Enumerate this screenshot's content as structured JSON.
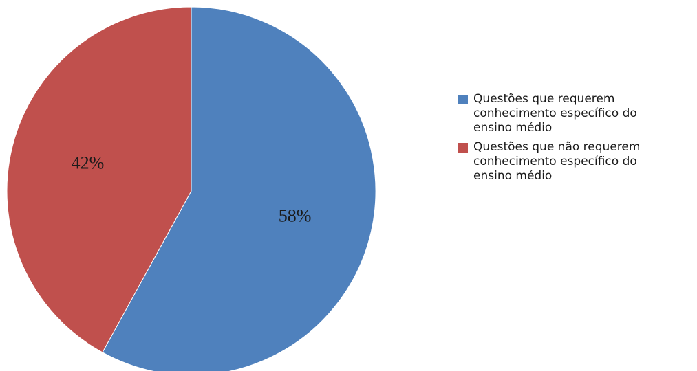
{
  "chart_data": {
    "type": "pie",
    "title": "",
    "start_angle_deg": 0,
    "direction": "clockwise",
    "legend_position": "right",
    "slices": [
      {
        "label": "Questões que requerem conhecimento específico do ensino médio",
        "value": 58,
        "display": "58%",
        "color": "#4F81BD"
      },
      {
        "label": "Questões que não requerem conhecimento específico do ensino médio",
        "value": 42,
        "display": "42%",
        "color": "#C0504D"
      }
    ]
  },
  "legend": {
    "items": [
      {
        "label": "Questões que requerem conhecimento específico do ensino médio",
        "color": "#4F81BD"
      },
      {
        "label": "Questões que não requerem conhecimento específico do ensino médio",
        "color": "#C0504D"
      }
    ]
  }
}
